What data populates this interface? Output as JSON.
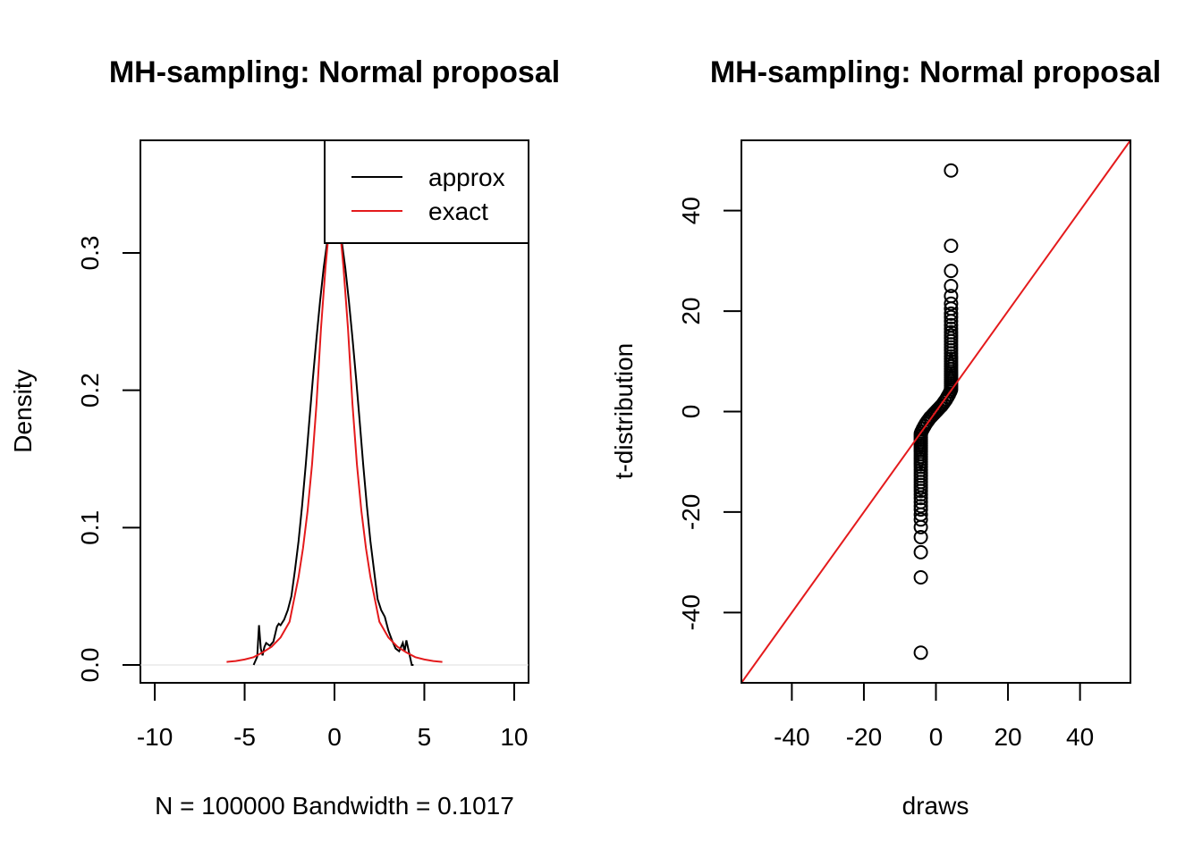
{
  "chart_data": [
    {
      "type": "line",
      "title": "MH-sampling: Normal proposal",
      "xlabel": "N = 100000   Bandwidth = 0.1017",
      "ylabel": "Density",
      "xlim": [
        -10.8,
        10.8
      ],
      "ylim": [
        -0.013,
        0.382
      ],
      "xticks": [
        -10,
        -5,
        0,
        5,
        10
      ],
      "yticks": [
        0.0,
        0.1,
        0.2,
        0.3
      ],
      "ytick_labels": [
        "0.0",
        "0.1",
        "0.2",
        "0.3"
      ],
      "legend": {
        "position": "top-right",
        "entries": [
          {
            "label": "approx",
            "color": "#000000"
          },
          {
            "label": "exact",
            "color": "#e41a1c"
          }
        ]
      },
      "series": [
        {
          "name": "approx",
          "color": "#000000",
          "x": [
            -4.5,
            -4.3,
            -4.2,
            -4.1,
            -4.0,
            -3.9,
            -3.8,
            -3.6,
            -3.4,
            -3.2,
            -3.1,
            -3.0,
            -2.8,
            -2.6,
            -2.4,
            -2.2,
            -2.0,
            -1.8,
            -1.6,
            -1.4,
            -1.2,
            -1.0,
            -0.8,
            -0.6,
            -0.4,
            -0.2,
            0.0,
            0.2,
            0.4,
            0.6,
            0.8,
            1.0,
            1.2,
            1.4,
            1.6,
            1.8,
            2.0,
            2.2,
            2.4,
            2.6,
            2.8,
            3.0,
            3.2,
            3.4,
            3.6,
            3.8,
            3.9,
            4.0,
            4.1,
            4.2,
            4.3,
            4.4
          ],
          "y": [
            0.0,
            0.006,
            0.029,
            0.012,
            0.007,
            0.013,
            0.016,
            0.014,
            0.017,
            0.028,
            0.03,
            0.029,
            0.033,
            0.04,
            0.05,
            0.069,
            0.09,
            0.116,
            0.146,
            0.178,
            0.209,
            0.238,
            0.265,
            0.289,
            0.309,
            0.325,
            0.33,
            0.325,
            0.309,
            0.289,
            0.265,
            0.238,
            0.209,
            0.178,
            0.146,
            0.116,
            0.09,
            0.069,
            0.048,
            0.04,
            0.035,
            0.025,
            0.018,
            0.012,
            0.01,
            0.016,
            0.01,
            0.018,
            0.012,
            0.006,
            0.0,
            0.0
          ]
        },
        {
          "name": "exact",
          "color": "#e41a1c",
          "x": [
            -6,
            -5.5,
            -5,
            -4.5,
            -4,
            -3.5,
            -3,
            -2.5,
            -2,
            -1.75,
            -1.5,
            -1.25,
            -1,
            -0.75,
            -0.5,
            -0.25,
            0,
            0.25,
            0.5,
            0.75,
            1,
            1.25,
            1.5,
            1.75,
            2,
            2.5,
            3,
            3.5,
            4,
            4.5,
            5,
            5.5,
            6
          ],
          "y": [
            0.0022,
            0.0029,
            0.004,
            0.0057,
            0.0091,
            0.0133,
            0.02,
            0.0315,
            0.064,
            0.085,
            0.112,
            0.146,
            0.19,
            0.245,
            0.29,
            0.325,
            0.34,
            0.325,
            0.29,
            0.245,
            0.19,
            0.146,
            0.112,
            0.085,
            0.064,
            0.0315,
            0.02,
            0.0133,
            0.0091,
            0.0057,
            0.004,
            0.0029,
            0.0022
          ]
        }
      ]
    },
    {
      "type": "scatter",
      "title": "MH-sampling: Normal proposal",
      "xlabel": "draws",
      "ylabel": "t-distribution",
      "xlim": [
        -54,
        54
      ],
      "ylim": [
        -54,
        54
      ],
      "xticks": [
        -40,
        -20,
        0,
        20,
        40
      ],
      "yticks": [
        -40,
        -20,
        0,
        20,
        40
      ],
      "points": {
        "x": [
          4.2,
          4.2,
          4.2,
          4.2,
          4.2,
          4.2,
          4.2,
          4.2,
          4.2,
          4.2,
          4.2,
          4.2,
          4.2,
          4.2,
          4.2,
          4.2,
          4.2,
          4.2,
          4.2,
          4.2,
          4.2,
          4.2,
          4.2,
          4.2,
          4.2,
          4.2,
          4.2,
          4.2,
          4.2,
          4.2,
          4.2,
          4.2,
          4.2,
          4.2,
          4.2,
          4.2,
          -4.2,
          -4.2,
          -4.2,
          -4.2,
          -4.2,
          -4.2,
          -4.2,
          -4.2,
          -4.2,
          -4.2,
          -4.2,
          -4.2,
          -4.2,
          -4.2,
          -4.2,
          -4.2,
          -4.2,
          -4.2,
          -4.2,
          -4.2,
          -4.2,
          -4.2,
          -4.2,
          -4.2,
          -4.2,
          -4.2,
          -4.2,
          -4.2,
          -4.2,
          -4.2,
          -4.2,
          -4.2,
          -4.2,
          -4.2,
          -4.2,
          -4.2,
          -4.0,
          -3.6,
          -3.2,
          -2.8,
          -2.4,
          -2.0,
          -1.6,
          -1.2,
          -0.8,
          -0.4,
          0.0,
          0.4,
          0.8,
          1.2,
          1.6,
          2.0,
          2.4,
          2.8,
          3.2,
          3.6,
          4.0
        ],
        "y": [
          48,
          33,
          28,
          25,
          23,
          21.5,
          20.5,
          19.5,
          18.8,
          18,
          17.2,
          16.5,
          15.8,
          15.2,
          14.6,
          14,
          13.4,
          12.8,
          12.2,
          11.6,
          11,
          10.5,
          10,
          9.5,
          9,
          8.5,
          8,
          7.6,
          7.2,
          6.8,
          6.4,
          6,
          5.6,
          5.2,
          4.8,
          4.4,
          -48,
          -33,
          -28,
          -25,
          -23,
          -21.5,
          -20.5,
          -19.5,
          -18.8,
          -18,
          -17.2,
          -16.5,
          -15.8,
          -15.2,
          -14.6,
          -14,
          -13.4,
          -12.8,
          -12.2,
          -11.6,
          -11,
          -10.5,
          -10,
          -9.5,
          -9,
          -8.5,
          -8,
          -7.6,
          -7.2,
          -6.8,
          -6.4,
          -6,
          -5.6,
          -5.2,
          -4.8,
          -4.4,
          -4.0,
          -3.4,
          -2.9,
          -2.4,
          -2.0,
          -1.6,
          -1.2,
          -0.9,
          -0.6,
          -0.3,
          0.0,
          0.3,
          0.6,
          0.9,
          1.2,
          1.6,
          2.0,
          2.4,
          2.9,
          3.4,
          4.0
        ]
      },
      "reference_line": {
        "slope": 1,
        "intercept": 0,
        "color": "#e41a1c"
      }
    }
  ]
}
